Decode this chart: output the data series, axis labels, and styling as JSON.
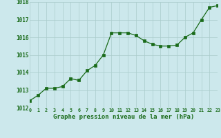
{
  "x": [
    0,
    1,
    2,
    3,
    4,
    5,
    6,
    7,
    8,
    9,
    10,
    11,
    12,
    13,
    14,
    15,
    16,
    17,
    18,
    19,
    20,
    21,
    22,
    23
  ],
  "y": [
    1012.4,
    1012.7,
    1013.1,
    1013.1,
    1013.2,
    1013.65,
    1013.55,
    1014.1,
    1014.4,
    1015.0,
    1016.25,
    1016.25,
    1016.25,
    1016.1,
    1015.8,
    1015.6,
    1015.5,
    1015.5,
    1015.55,
    1016.0,
    1016.25,
    1017.0,
    1017.7,
    1017.8
  ],
  "line_color": "#1a6b1a",
  "marker_color": "#1a6b1a",
  "bg_color": "#cce8ec",
  "grid_color": "#aacccc",
  "xlabel": "Graphe pression niveau de la mer (hPa)",
  "xlabel_color": "#1a6b1a",
  "tick_color": "#1a6b1a",
  "ylim": [
    1012,
    1018
  ],
  "xlim": [
    0,
    23
  ],
  "yticks": [
    1012,
    1013,
    1014,
    1015,
    1016,
    1017,
    1018
  ],
  "xticks": [
    0,
    1,
    2,
    3,
    4,
    5,
    6,
    7,
    8,
    9,
    10,
    11,
    12,
    13,
    14,
    15,
    16,
    17,
    18,
    19,
    20,
    21,
    22,
    23
  ],
  "xtick_labels": [
    "0",
    "1",
    "2",
    "3",
    "4",
    "5",
    "6",
    "7",
    "8",
    "9",
    "10",
    "11",
    "12",
    "13",
    "14",
    "15",
    "16",
    "17",
    "18",
    "19",
    "20",
    "21",
    "22",
    "23"
  ]
}
